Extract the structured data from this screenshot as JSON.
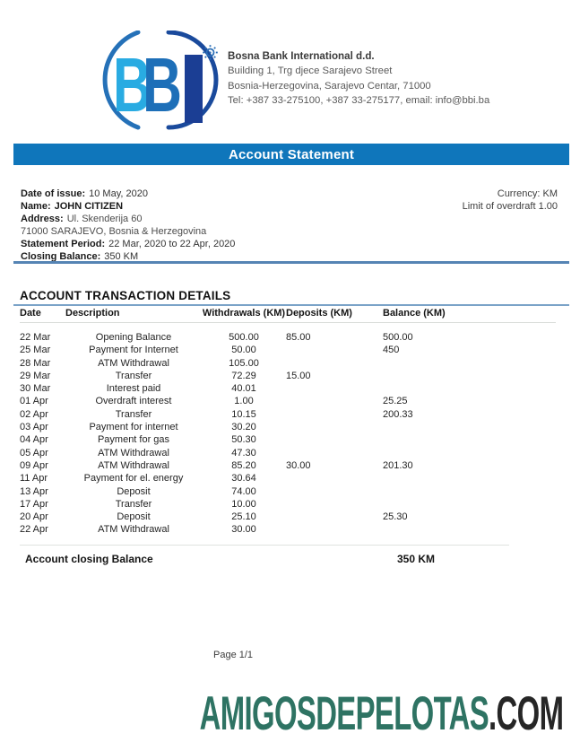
{
  "bank": {
    "name": "Bosna Bank International d.d.",
    "address_line1": "Building 1, Trg djece Sarajevo Street",
    "address_line2": "Bosnia-Herzegovina, Sarajevo Centar, 71000",
    "contact_line": "Tel: +387 33-275100,  +387 33-275177, email: info@bbi.ba",
    "logo_letters": "BBI"
  },
  "title_bar": {
    "label": "Account Statement"
  },
  "statement_info": {
    "date_of_issue_label": "Date of issue:",
    "date_of_issue": "10 May, 2020",
    "name_label": "Name:",
    "name": "JOHN CITIZEN",
    "address_label": "Address:",
    "address": "Ul. Skenderija 60",
    "address_line2": "71000 SARAJEVO, Bosnia & Herzegovina",
    "period_label": "Statement Period:",
    "period": "22 Mar, 2020 to 22 Apr, 2020",
    "closing_balance_label": "Closing Balance:",
    "closing_balance": "350 KM",
    "currency_line": "Currency: KM",
    "overdraft_line": "Limit of overdraft 1.00"
  },
  "transactions": {
    "section_title": "ACCOUNT TRANSACTION DETAILS",
    "columns": [
      "Date",
      "Description",
      "Withdrawals (KM)",
      "Deposits (KM)",
      "Balance (KM)"
    ],
    "rows": [
      {
        "date": "22 Mar",
        "description": "Opening Balance",
        "withdrawals": "500.00",
        "deposits": "85.00",
        "balance": "500.00"
      },
      {
        "date": "25 Mar",
        "description": "Payment for Internet",
        "withdrawals": "50.00",
        "deposits": "",
        "balance": "450"
      },
      {
        "date": "28 Mar",
        "description": "ATM Withdrawal",
        "withdrawals": "105.00",
        "deposits": "",
        "balance": ""
      },
      {
        "date": "29 Mar",
        "description": "Transfer",
        "withdrawals": "72.29",
        "deposits": "15.00",
        "balance": ""
      },
      {
        "date": "30 Mar",
        "description": "Interest paid",
        "withdrawals": "40.01",
        "deposits": "",
        "balance": ""
      },
      {
        "date": "01 Apr",
        "description": "Overdraft interest",
        "withdrawals": "1.00",
        "deposits": "",
        "balance": "25.25"
      },
      {
        "date": "02 Apr",
        "description": "Transfer",
        "withdrawals": "10.15",
        "deposits": "",
        "balance": "200.33"
      },
      {
        "date": "03 Apr",
        "description": "Payment for internet",
        "withdrawals": "30.20",
        "deposits": "",
        "balance": ""
      },
      {
        "date": "04 Apr",
        "description": "Payment for gas",
        "withdrawals": "50.30",
        "deposits": "",
        "balance": ""
      },
      {
        "date": "05 Apr",
        "description": "ATM Withdrawal",
        "withdrawals": "47.30",
        "deposits": "",
        "balance": ""
      },
      {
        "date": "09 Apr",
        "description": "ATM Withdrawal",
        "withdrawals": "85.20",
        "deposits": "30.00",
        "balance": "201.30"
      },
      {
        "date": "11 Apr",
        "description": "Payment for el. energy",
        "withdrawals": "30.64",
        "deposits": "",
        "balance": ""
      },
      {
        "date": "13 Apr",
        "description": "Deposit",
        "withdrawals": "74.00",
        "deposits": "",
        "balance": ""
      },
      {
        "date": "17 Apr",
        "description": "Transfer",
        "withdrawals": "10.00",
        "deposits": "",
        "balance": ""
      },
      {
        "date": "20 Apr",
        "description": "Deposit",
        "withdrawals": "25.10",
        "deposits": "",
        "balance": "25.30"
      },
      {
        "date": "22 Apr",
        "description": "ATM Withdrawal",
        "withdrawals": "30.00",
        "deposits": "",
        "balance": ""
      }
    ],
    "closing_row": {
      "label": "Account closing Balance",
      "value": "350 KM"
    }
  },
  "footer": {
    "page_label": "Page 1/1"
  },
  "watermark": {
    "site_name": "AMIGOSDEPELOTAS",
    "site_tld": ".COM"
  },
  "colors": {
    "title_bar_bg": "#0f76bb",
    "rule_blue": "#5584b4",
    "rule_blue_light": "#7ba3c8",
    "logo_light_blue": "#29abe2",
    "logo_mid_blue": "#1d6fb8",
    "logo_navy": "#1b3e94",
    "watermark_green": "#2e7363",
    "watermark_dark": "#262626"
  }
}
